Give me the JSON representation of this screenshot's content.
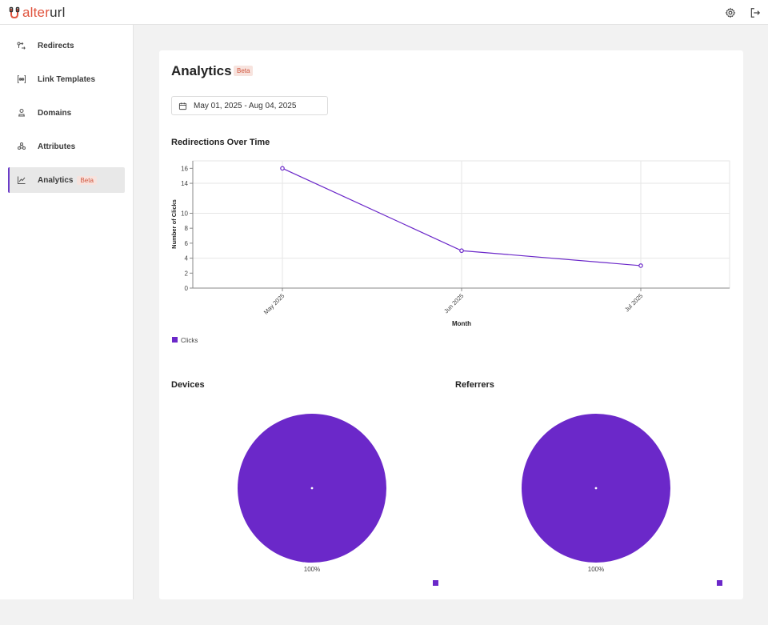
{
  "app": {
    "logo_text_accent": "alter",
    "logo_text_rest": "url"
  },
  "topbar": {
    "settings_icon": "gear-icon",
    "logout_icon": "logout-icon"
  },
  "sidebar": {
    "items": [
      {
        "label": "Redirects",
        "icon": "redirect-icon",
        "active": false
      },
      {
        "label": "Link Templates",
        "icon": "link-template-icon",
        "active": false
      },
      {
        "label": "Domains",
        "icon": "domain-icon",
        "active": false
      },
      {
        "label": "Attributes",
        "icon": "attributes-icon",
        "active": false
      },
      {
        "label": "Analytics",
        "icon": "analytics-icon",
        "active": true,
        "badge": "Beta"
      }
    ]
  },
  "main": {
    "title": "Analytics",
    "title_badge": "Beta",
    "date_range": "May 01, 2025 - Aug 04, 2025",
    "chart_title": "Redirections Over Time",
    "devices_title": "Devices",
    "referrers_title": "Referrers"
  },
  "colors": {
    "accent": "#6b28c9",
    "badge_text": "#d0553d",
    "badge_bg": "#f7e3de"
  },
  "chart_data": [
    {
      "type": "line",
      "title": "Redirections Over Time",
      "xlabel": "Month",
      "ylabel": "Number of Clicks",
      "categories": [
        "May 2025",
        "Jun 2025",
        "Jul 2025"
      ],
      "series": [
        {
          "name": "Clicks",
          "values": [
            16,
            5,
            3
          ]
        }
      ],
      "yticks": [
        0,
        2,
        4,
        6,
        8,
        10,
        14,
        16
      ],
      "ylim": [
        0,
        17
      ],
      "grid": true,
      "legend": "bottom-left"
    },
    {
      "type": "pie",
      "title": "Devices",
      "values": [
        100
      ],
      "slice_labels": [
        "100%"
      ]
    },
    {
      "type": "pie",
      "title": "Referrers",
      "values": [
        100
      ],
      "slice_labels": [
        "100%"
      ]
    }
  ]
}
